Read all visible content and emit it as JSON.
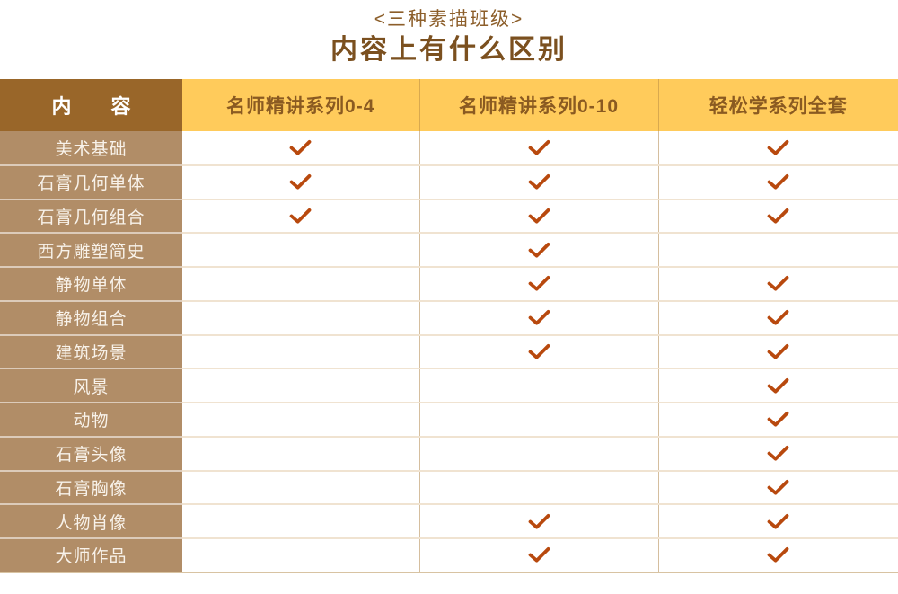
{
  "title": {
    "tagline": "<三种素描班级>",
    "heading": "内容上有什么区别"
  },
  "chart_data": {
    "type": "table",
    "title": "<三种素描班级>",
    "subtitle": "内容上有什么区别",
    "row_header_label": "内　　容",
    "columns": [
      "名师精讲系列0-4",
      "名师精讲系列0-10",
      "轻松学系列全套"
    ],
    "rows": [
      "美术基础",
      "石膏几何单体",
      "石膏几何组合",
      "西方雕塑简史",
      "静物单体",
      "静物组合",
      "建筑场景",
      "风景",
      "动物",
      "石膏头像",
      "石膏胸像",
      "人物肖像",
      "大师作品"
    ],
    "checks": [
      [
        1,
        1,
        1
      ],
      [
        1,
        1,
        1
      ],
      [
        1,
        1,
        1
      ],
      [
        0,
        1,
        0
      ],
      [
        0,
        1,
        1
      ],
      [
        0,
        1,
        1
      ],
      [
        0,
        1,
        1
      ],
      [
        0,
        0,
        1
      ],
      [
        0,
        0,
        1
      ],
      [
        0,
        0,
        1
      ],
      [
        0,
        0,
        1
      ],
      [
        0,
        1,
        1
      ],
      [
        0,
        1,
        1
      ]
    ],
    "check_symbol": "✓",
    "legend_position": "none",
    "grid": true
  },
  "icons": {
    "check": "check-icon"
  },
  "colors": {
    "title_tagline": "#8c5e2a",
    "title_heading": "#7b501f",
    "header_brown_bg": "#996629",
    "header_yellow_bg": "#ffcb5b",
    "header_yellow_text": "#8a5a21",
    "row_label_bg": "#b18d67",
    "row_label_text": "#f8f2ea",
    "check": "#b8490e",
    "grid_vertical": "#d5be9e",
    "grid_horizontal": "#f0e3d1",
    "table_bottom_border": "#d8c3a2"
  }
}
